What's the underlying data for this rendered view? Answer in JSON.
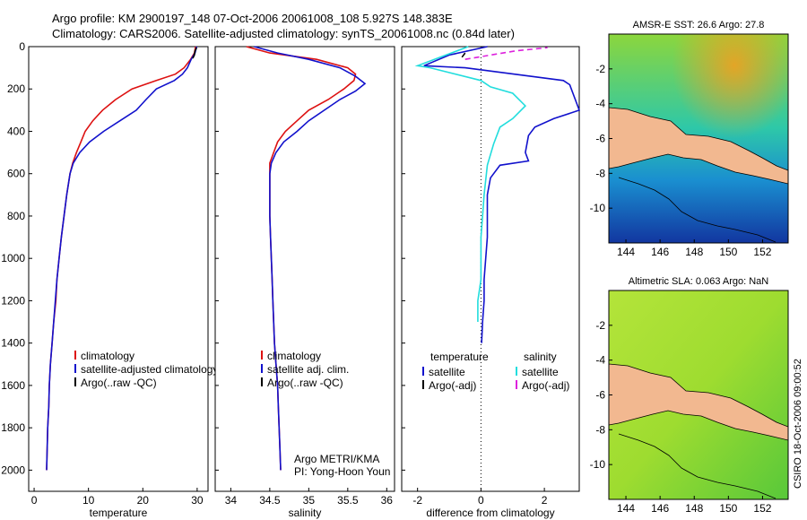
{
  "header": {
    "line1": "Argo profile: KM 2900197_148 07-Oct-2006 20061008_108 5.927S 148.383E",
    "line2": "Climatology: CARS2006. Satellite-adjusted climatology: synTS_20061008.nc (0.84d later)"
  },
  "side_stamp": "CSIRO 18-Oct-2006 09:00:52",
  "colors": {
    "climatology": "#dd1111",
    "satellite": "#1111cc",
    "argo": "#000000",
    "salinity_satellite": "#22dddd",
    "salinity_argo": "#dd22dd",
    "land": "#f2b890"
  },
  "chart_data": [
    {
      "type": "line",
      "xlabel": "temperature",
      "ylabel": "",
      "xlim": [
        -1,
        32
      ],
      "ylim": [
        2100,
        0
      ],
      "y_reversed": true,
      "x_ticks": [
        0,
        10,
        20,
        30
      ],
      "y_ticks": [
        0,
        200,
        400,
        600,
        800,
        1000,
        1200,
        1400,
        1600,
        1800,
        2000
      ],
      "legend": {
        "placement": "lower-right",
        "labels": [
          "climatology",
          "satellite-adjusted climatology",
          "Argo(..raw -QC)"
        ]
      },
      "series": [
        {
          "name": "climatology",
          "color": "#dd1111",
          "points": [
            [
              29.7,
              0
            ],
            [
              29.5,
              30
            ],
            [
              28.8,
              60
            ],
            [
              27.6,
              100
            ],
            [
              26,
              130
            ],
            [
              22.5,
              160
            ],
            [
              18,
              200
            ],
            [
              15,
              250
            ],
            [
              12.6,
              300
            ],
            [
              10.8,
              350
            ],
            [
              9.4,
              400
            ],
            [
              8.6,
              450
            ],
            [
              7.8,
              500
            ],
            [
              7.1,
              550
            ],
            [
              6.6,
              600
            ],
            [
              6,
              700
            ],
            [
              5.5,
              800
            ],
            [
              5,
              900
            ],
            [
              4.6,
              1000
            ],
            [
              4.2,
              1100
            ],
            [
              4,
              1200
            ],
            [
              3.6,
              1300
            ],
            [
              3.3,
              1400
            ],
            [
              3,
              1500
            ],
            [
              2.8,
              1600
            ],
            [
              2.7,
              1700
            ],
            [
              2.5,
              1800
            ],
            [
              2.4,
              1900
            ],
            [
              2.3,
              2000
            ]
          ]
        },
        {
          "name": "satellite-adjusted climatology",
          "color": "#1111cc",
          "points": [
            [
              29.9,
              0
            ],
            [
              29.6,
              30
            ],
            [
              28.9,
              60
            ],
            [
              28.2,
              100
            ],
            [
              27.3,
              130
            ],
            [
              25.8,
              160
            ],
            [
              22.5,
              200
            ],
            [
              20.6,
              250
            ],
            [
              18.8,
              300
            ],
            [
              15.8,
              350
            ],
            [
              12.8,
              400
            ],
            [
              10.2,
              450
            ],
            [
              8.4,
              500
            ],
            [
              7.2,
              550
            ],
            [
              6.6,
              600
            ],
            [
              6,
              700
            ],
            [
              5.5,
              800
            ],
            [
              5,
              900
            ],
            [
              4.6,
              1000
            ],
            [
              4.2,
              1100
            ],
            [
              3.9,
              1200
            ],
            [
              3.6,
              1300
            ],
            [
              3.3,
              1400
            ],
            [
              3,
              1500
            ],
            [
              2.8,
              1600
            ],
            [
              2.7,
              1700
            ],
            [
              2.5,
              1800
            ],
            [
              2.4,
              1900
            ],
            [
              2.3,
              2000
            ]
          ]
        },
        {
          "name": "Argo(..raw -QC)",
          "color": "#000000",
          "points": [
            [
              29.9,
              5
            ],
            [
              29.6,
              20
            ],
            [
              29.5,
              40
            ],
            [
              29.2,
              55
            ]
          ]
        }
      ]
    },
    {
      "type": "line",
      "xlabel": "salinity",
      "ylabel": "",
      "xlim": [
        33.8,
        36.1
      ],
      "ylim": [
        2100,
        0
      ],
      "y_reversed": true,
      "x_ticks": [
        34,
        34.5,
        35,
        35.5,
        36
      ],
      "y_ticks": [
        0,
        200,
        400,
        600,
        800,
        1000,
        1200,
        1400,
        1600,
        1800,
        2000
      ],
      "legend": {
        "placement": "lower-right",
        "labels": [
          "climatology",
          "satellite adj. clim.",
          "Argo(..raw -QC)"
        ]
      },
      "annotation": [
        "Argo METRI/KMA",
        "PI: Yong-Hoon Youn"
      ],
      "series": [
        {
          "name": "climatology",
          "color": "#dd1111",
          "points": [
            [
              34.2,
              0
            ],
            [
              34.5,
              30
            ],
            [
              35.1,
              60
            ],
            [
              35.5,
              100
            ],
            [
              35.6,
              130
            ],
            [
              35.58,
              160
            ],
            [
              35.45,
              200
            ],
            [
              35.25,
              250
            ],
            [
              35.0,
              300
            ],
            [
              34.85,
              350
            ],
            [
              34.7,
              400
            ],
            [
              34.6,
              450
            ],
            [
              34.55,
              500
            ],
            [
              34.5,
              550
            ],
            [
              34.5,
              600
            ],
            [
              34.5,
              700
            ],
            [
              34.5,
              800
            ],
            [
              34.51,
              900
            ],
            [
              34.52,
              1000
            ],
            [
              34.53,
              1100
            ],
            [
              34.54,
              1200
            ],
            [
              34.55,
              1300
            ],
            [
              34.56,
              1400
            ],
            [
              34.58,
              1500
            ],
            [
              34.6,
              1600
            ],
            [
              34.61,
              1700
            ],
            [
              34.62,
              1800
            ],
            [
              34.63,
              1900
            ],
            [
              34.64,
              2000
            ]
          ]
        },
        {
          "name": "satellite adj. clim.",
          "color": "#1111cc",
          "points": [
            [
              34.3,
              0
            ],
            [
              34.6,
              30
            ],
            [
              35.0,
              60
            ],
            [
              35.4,
              100
            ],
            [
              35.6,
              140
            ],
            [
              35.72,
              175
            ],
            [
              35.6,
              210
            ],
            [
              35.4,
              250
            ],
            [
              35.2,
              300
            ],
            [
              35.0,
              350
            ],
            [
              34.85,
              400
            ],
            [
              34.68,
              450
            ],
            [
              34.58,
              500
            ],
            [
              34.52,
              550
            ],
            [
              34.5,
              600
            ],
            [
              34.5,
              700
            ],
            [
              34.5,
              800
            ],
            [
              34.51,
              900
            ],
            [
              34.52,
              1000
            ],
            [
              34.53,
              1100
            ],
            [
              34.54,
              1200
            ],
            [
              34.55,
              1300
            ],
            [
              34.56,
              1400
            ],
            [
              34.58,
              1500
            ],
            [
              34.6,
              1600
            ],
            [
              34.61,
              1700
            ],
            [
              34.62,
              1800
            ],
            [
              34.63,
              1900
            ],
            [
              34.64,
              2000
            ]
          ]
        },
        {
          "name": "Argo(..raw -QC)",
          "color": "#000000",
          "points": []
        }
      ]
    },
    {
      "type": "line",
      "xlabel": "difference from climatology",
      "ylabel": "",
      "xlim": [
        -2.5,
        3.1
      ],
      "ylim": [
        2100,
        0
      ],
      "y_reversed": true,
      "x_ticks": [
        -2,
        0,
        2
      ],
      "y_ticks": [
        0,
        200,
        400,
        600,
        800,
        1000,
        1200,
        1400,
        1600,
        1800,
        2000
      ],
      "zero_line": true,
      "legend": {
        "placement": "lower-left",
        "headers": [
          "temperature",
          "salinity"
        ],
        "labels": [
          "satellite",
          "Argo(-adj)",
          "satellite",
          "Argo(-adj)"
        ]
      },
      "series": [
        {
          "name": "satellite",
          "group": "temperature",
          "color": "#1111cc",
          "points": [
            [
              0.2,
              0
            ],
            [
              -1,
              40
            ],
            [
              -1.8,
              90
            ],
            [
              -0.5,
              100
            ],
            [
              2.6,
              160
            ],
            [
              2.8,
              180
            ],
            [
              3.1,
              300
            ],
            [
              2.3,
              340
            ],
            [
              1.7,
              380
            ],
            [
              1.5,
              420
            ],
            [
              1.4,
              500
            ],
            [
              1.5,
              540
            ],
            [
              0.6,
              560
            ],
            [
              0.3,
              620
            ],
            [
              0.2,
              700
            ],
            [
              0.2,
              800
            ],
            [
              0.2,
              900
            ],
            [
              0.15,
              1000
            ],
            [
              0.1,
              1100
            ],
            [
              0.1,
              1200
            ],
            [
              0.05,
              1300
            ],
            [
              0.02,
              1400
            ]
          ]
        },
        {
          "name": "Argo(-adj)",
          "group": "temperature",
          "color": "#000000",
          "points": [
            [
              -0.5,
              30
            ],
            [
              -0.6,
              50
            ]
          ]
        },
        {
          "name": "satellite",
          "group": "salinity",
          "color": "#22dddd",
          "points": [
            [
              -0.4,
              0
            ],
            [
              -2,
              90
            ],
            [
              -1.6,
              100
            ],
            [
              0,
              160
            ],
            [
              0.3,
              190
            ],
            [
              1.0,
              220
            ],
            [
              1.4,
              280
            ],
            [
              1.0,
              340
            ],
            [
              0.6,
              380
            ],
            [
              0.4,
              460
            ],
            [
              0.2,
              560
            ],
            [
              0.1,
              700
            ],
            [
              0.05,
              800
            ],
            [
              0,
              900
            ],
            [
              0,
              1000
            ],
            [
              0,
              1100
            ],
            [
              -0.1,
              1200
            ],
            [
              -0.1,
              1300
            ]
          ]
        },
        {
          "name": "Argo(-adj)",
          "group": "salinity",
          "color": "#dd22dd",
          "dashed": true,
          "points": [
            [
              -0.5,
              60
            ],
            [
              0.3,
              40
            ],
            [
              1.1,
              20
            ],
            [
              2.1,
              5
            ]
          ]
        }
      ]
    },
    {
      "type": "heatmap",
      "title": "AMSR-E SST: 26.6  Argo: 27.8",
      "xlim": [
        143,
        153.5
      ],
      "ylim": [
        -12,
        0
      ],
      "x_ticks": [
        144,
        146,
        148,
        150,
        152
      ],
      "y_ticks": [
        -2,
        -4,
        -6,
        -8,
        -10
      ]
    },
    {
      "type": "heatmap",
      "title": "Altimetric SLA: 0.063  Argo: NaN",
      "xlim": [
        143,
        153.5
      ],
      "ylim": [
        -12,
        0
      ],
      "x_ticks": [
        144,
        146,
        148,
        150,
        152
      ],
      "y_ticks": [
        -2,
        -4,
        -6,
        -8,
        -10
      ]
    }
  ]
}
